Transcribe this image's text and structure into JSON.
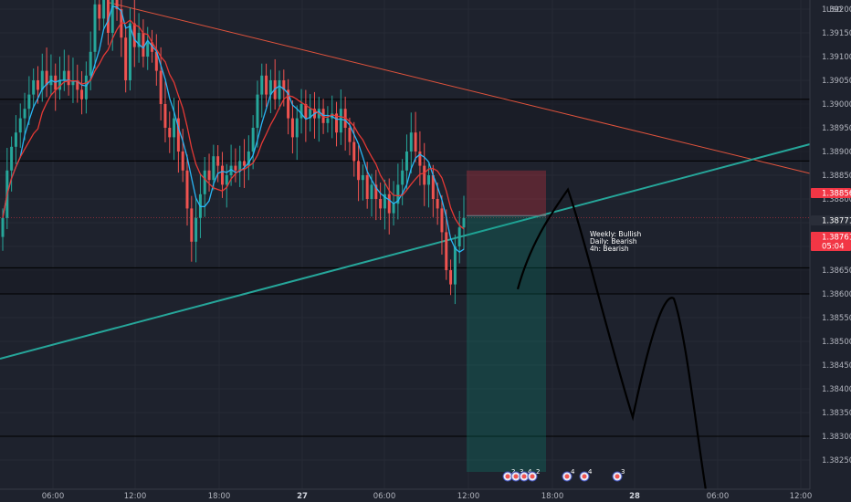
{
  "chart_data": {
    "type": "candlestick",
    "currency": "USD",
    "y_range": [
      1.38225,
      1.39235
    ],
    "y_ticks": [
      "1.39200",
      "1.39150",
      "1.39100",
      "1.39050",
      "1.39000",
      "1.38950",
      "1.38900",
      "1.38850",
      "1.38800",
      "1.38750",
      "1.38700",
      "1.38650",
      "1.38600",
      "1.38550",
      "1.38500",
      "1.38450",
      "1.38400",
      "1.38350",
      "1.38300",
      "1.38250"
    ],
    "x_ticks": [
      {
        "label": "06:00",
        "bold": false
      },
      {
        "label": "12:00",
        "bold": false
      },
      {
        "label": "18:00",
        "bold": false
      },
      {
        "label": "27",
        "bold": true
      },
      {
        "label": "06:00",
        "bold": false
      },
      {
        "label": "12:00",
        "bold": false
      },
      {
        "label": "18:00",
        "bold": false
      },
      {
        "label": "28",
        "bold": true
      },
      {
        "label": "06:00",
        "bold": false
      },
      {
        "label": "12:00",
        "bold": false
      }
    ],
    "price_labels": [
      {
        "value": "1.38856",
        "color": "#f23645"
      },
      {
        "value": "1.38771",
        "color": "#2a2e39"
      },
      {
        "value": "1.38761",
        "color": "#f23645"
      },
      {
        "value": "05:04",
        "color": "#f23645"
      }
    ],
    "horizontal_levels": [
      1.3901,
      1.3888,
      1.38655,
      1.386,
      1.383
    ],
    "annotation_lines": [
      "Weekly: Bullish",
      "Daily: Bearish",
      "4h: Bearish"
    ],
    "position": {
      "entry": 1.38765,
      "stop": 1.3886,
      "target": 1.38225
    },
    "event_badges": [
      {
        "label": "2",
        "group": "a"
      },
      {
        "label": "3",
        "group": "a"
      },
      {
        "label": "4",
        "group": "a"
      },
      {
        "label": "2",
        "group": "a"
      },
      {
        "label": "4",
        "group": "b"
      },
      {
        "label": "4",
        "group": "b"
      },
      {
        "label": "3",
        "group": "c"
      }
    ],
    "candle_data": [
      1.3876,
      1.3886,
      1.3891,
      1.3894,
      1.3897,
      1.3899,
      1.3902,
      1.3905,
      1.3903,
      1.3907,
      1.3904,
      1.3906,
      1.3903,
      1.3905,
      1.3907,
      1.3904,
      1.3905,
      1.3903,
      1.3901,
      1.3906,
      1.3911,
      1.3921,
      1.3918,
      1.3923,
      1.3915,
      1.3926,
      1.392,
      1.3914,
      1.3905,
      1.3917,
      1.3912,
      1.3915,
      1.391,
      1.3913,
      1.3911,
      1.3907,
      1.39,
      1.3895,
      1.3893,
      1.3897,
      1.389,
      1.3886,
      1.3878,
      1.3871,
      1.3876,
      1.3881,
      1.3886,
      1.3884,
      1.3889,
      1.3887,
      1.3883,
      1.3885,
      1.3887,
      1.3886,
      1.3888,
      1.3887,
      1.389,
      1.3895,
      1.3902,
      1.3906,
      1.3902,
      1.3905,
      1.3901,
      1.3905,
      1.3903,
      1.3897,
      1.3893,
      1.3897,
      1.39,
      1.3897,
      1.3899,
      1.3897,
      1.3899,
      1.3896,
      1.3897,
      1.3898,
      1.3894,
      1.3899,
      1.3895,
      1.3892,
      1.3888,
      1.3884,
      1.3885,
      1.388,
      1.3883,
      1.388,
      1.3878,
      1.3881,
      1.3877,
      1.3879,
      1.3883,
      1.3886,
      1.389,
      1.3894,
      1.389,
      1.3887,
      1.3883,
      1.3885,
      1.388,
      1.3878,
      1.3873,
      1.3865,
      1.3862,
      1.387,
      1.3874,
      1.3876
    ]
  }
}
